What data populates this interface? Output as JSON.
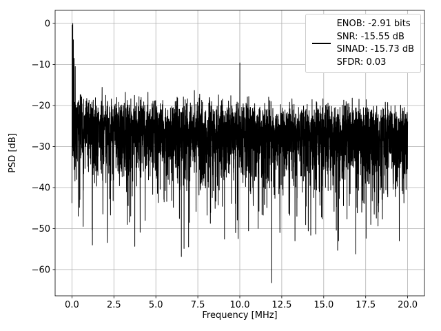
{
  "chart_data": {
    "type": "line",
    "title": "",
    "xlabel": "Frequency [MHz]",
    "ylabel": "PSD [dB]",
    "xlim": [
      -1,
      21
    ],
    "ylim": [
      -66.4,
      3.2
    ],
    "xticks": [
      0.0,
      2.5,
      5.0,
      7.5,
      10.0,
      12.5,
      15.0,
      17.5,
      20.0
    ],
    "xtick_labels": [
      "0.0",
      "2.5",
      "5.0",
      "7.5",
      "10.0",
      "12.5",
      "15.0",
      "17.5",
      "20.0"
    ],
    "yticks": [
      0,
      -10,
      -20,
      -30,
      -40,
      -50,
      -60
    ],
    "ytick_labels": [
      "0",
      "−10",
      "−20",
      "−30",
      "−40",
      "−50",
      "−60"
    ],
    "grid": true,
    "line_color": "#000000",
    "grid_color": "#b0b0b0",
    "legend": {
      "position": "upper right",
      "lines": [
        "ENOB: -2.91 bits",
        "SNR: -15.55 dB",
        "SINAD: -15.73 dB",
        "SFDR: 0.03"
      ]
    },
    "series": [
      {
        "name": "PSD",
        "description": "Dense FFT noise-floor trace: top envelope near -16 dB, median near -26 dB, downward spikes to below -60 dB; signal peak 0 dB near 0 MHz and a -9.6 dB spur at 10 MHz",
        "points": 4096,
        "x_range": [
          0,
          20
        ],
        "noise_floor_db": -24.5,
        "tilt_db_per_mhz": -0.08,
        "seed": 7,
        "features": [
          {
            "x": 0.02,
            "y": -0.4
          },
          {
            "x": 0.05,
            "y": 0.0
          },
          {
            "x": 0.09,
            "y": -4.0
          },
          {
            "x": 0.13,
            "y": -8.5
          },
          {
            "x": 0.2,
            "y": -10.5
          },
          {
            "x": 1.22,
            "y": -54.0
          },
          {
            "x": 3.3,
            "y": -49.0
          },
          {
            "x": 7.0,
            "y": -48.5
          },
          {
            "x": 9.75,
            "y": -51.0
          },
          {
            "x": 10.0,
            "y": -9.6
          },
          {
            "x": 11.9,
            "y": -63.2
          },
          {
            "x": 13.4,
            "y": -47.0
          },
          {
            "x": 16.9,
            "y": -56.2
          },
          {
            "x": 17.8,
            "y": -49.0
          },
          {
            "x": 19.5,
            "y": -53.0
          }
        ]
      }
    ]
  }
}
